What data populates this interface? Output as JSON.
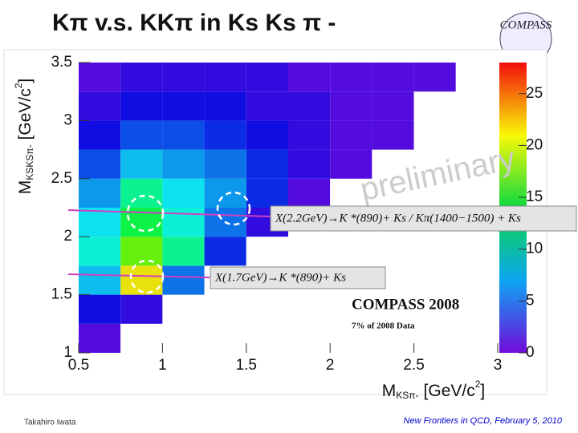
{
  "slide_title": "Kπ  v.s. KKπ in Ks Ks π -",
  "logo": "COMPASS",
  "footer": {
    "author": "Takahiro Iwata",
    "event": "New Frontiers in QCD, February 5, 2010"
  },
  "chart_data": {
    "type": "heatmap",
    "x_label": {
      "symbol": "M",
      "subscript": "KSπ-",
      "unit": "[GeV/c",
      "unit_sup": "2",
      "unit_end": "]"
    },
    "y_label": {
      "symbol": "M",
      "subscript": "KSKSπ-",
      "unit": "[GeV/c",
      "unit_sup": "2",
      "unit_end": "]"
    },
    "xlim": [
      0.5,
      3.0
    ],
    "ylim": [
      1,
      3.5
    ],
    "xticks": [
      0.5,
      1,
      1.5,
      2,
      2.5,
      3
    ],
    "yticks": [
      1,
      1.5,
      2,
      2.5,
      3,
      3.5
    ],
    "xbins": [
      0.5,
      0.75,
      1.0,
      1.25,
      1.5,
      1.75,
      2.0,
      2.25,
      2.5,
      2.75,
      3.0
    ],
    "ybins": [
      1.0,
      1.25,
      1.5,
      1.75,
      2.0,
      2.25,
      2.5,
      2.75,
      3.0,
      3.25,
      3.5
    ],
    "values": [
      [
        1,
        0,
        0,
        0,
        0,
        0,
        0,
        0,
        0,
        0
      ],
      [
        3,
        2,
        0,
        0,
        0,
        0,
        0,
        0,
        0,
        0
      ],
      [
        8,
        22,
        6,
        0,
        0,
        0,
        0,
        0,
        0,
        0
      ],
      [
        10,
        18,
        12,
        4,
        0,
        0,
        0,
        0,
        0,
        0
      ],
      [
        9,
        14,
        10,
        6,
        2,
        0,
        0,
        0,
        0,
        0
      ],
      [
        7,
        12,
        9,
        7,
        4,
        1,
        0,
        0,
        0,
        0
      ],
      [
        5,
        8,
        7,
        6,
        4,
        2,
        1,
        0,
        0,
        0
      ],
      [
        3,
        5,
        5,
        4,
        3,
        2,
        1,
        1,
        0,
        0
      ],
      [
        2,
        3,
        3,
        3,
        2,
        2,
        1,
        1,
        0,
        0
      ],
      [
        1,
        2,
        2,
        2,
        2,
        1,
        1,
        1,
        1,
        0
      ]
    ],
    "colormap": "rainbow",
    "clim": [
      0,
      28
    ],
    "cticks": [
      0,
      5,
      10,
      15,
      20,
      25
    ],
    "annotations": {
      "watermark": "preliminary",
      "x22": "X(2.2GeV)→K *(890)+ Ks / Kπ(1400−1500) + Ks",
      "x17": "X(1.7GeV)→K *(890)+ Ks",
      "experiment": "COMPASS 2008",
      "fraction": "7% of 2008 Data"
    }
  }
}
